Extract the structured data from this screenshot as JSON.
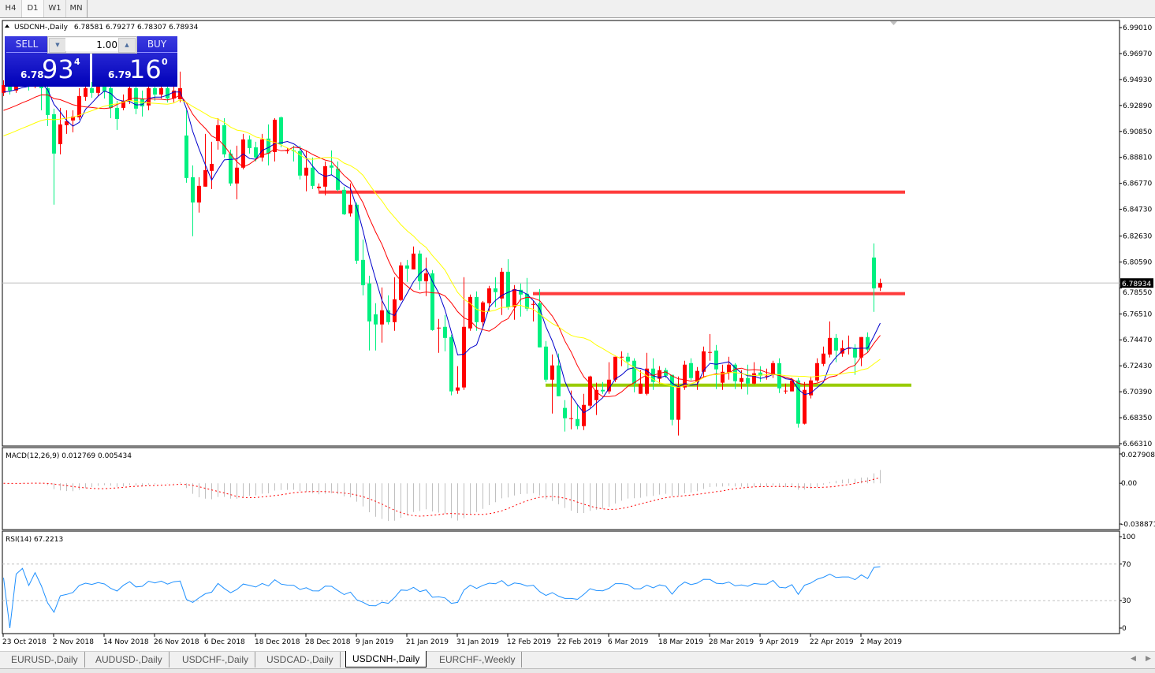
{
  "timeframes": [
    {
      "label": "H4",
      "selected": false
    },
    {
      "label": "D1",
      "selected": true
    },
    {
      "label": "W1",
      "selected": false
    },
    {
      "label": "MN",
      "selected": false
    }
  ],
  "chart": {
    "symbol_line": "USDCNH-,Daily",
    "ohlc_line": "6.78581 6.79277 6.78307 6.78934",
    "current_price": "6.78934",
    "price_ticks": [
      "6.99010",
      "6.96970",
      "6.94930",
      "6.92890",
      "6.90850",
      "6.88810",
      "6.86770",
      "6.84730",
      "6.82630",
      "6.80590",
      "6.78550",
      "6.76510",
      "6.74470",
      "6.72430",
      "6.70390",
      "6.68350",
      "6.66310"
    ],
    "price_range": [
      6.6631,
      6.9901
    ],
    "up_color": "#ff0000",
    "down_color": "#00f080",
    "ma_colors": [
      "#0000cc",
      "#ff0000",
      "#ffff00"
    ],
    "levels": [
      {
        "price": 6.8608,
        "from_bar": 50,
        "to_bar": 143,
        "color": "#ff3b3b"
      },
      {
        "price": 6.781,
        "from_bar": 84,
        "to_bar": 143,
        "color": "#ff3b3b"
      },
      {
        "price": 6.7091,
        "from_bar": 86,
        "to_bar": 144,
        "color": "#99cc00"
      }
    ],
    "date_labels": [
      {
        "bar": 0,
        "text": "23 Oct 2018"
      },
      {
        "bar": 8,
        "text": "2 Nov 2018"
      },
      {
        "bar": 16,
        "text": "14 Nov 2018"
      },
      {
        "bar": 24,
        "text": "26 Nov 2018"
      },
      {
        "bar": 32,
        "text": "6 Dec 2018"
      },
      {
        "bar": 40,
        "text": "18 Dec 2018"
      },
      {
        "bar": 48,
        "text": "28 Dec 2018"
      },
      {
        "bar": 56,
        "text": "9 Jan 2019"
      },
      {
        "bar": 64,
        "text": "21 Jan 2019"
      },
      {
        "bar": 72,
        "text": "31 Jan 2019"
      },
      {
        "bar": 80,
        "text": "12 Feb 2019"
      },
      {
        "bar": 88,
        "text": "22 Feb 2019"
      },
      {
        "bar": 96,
        "text": "6 Mar 2019"
      },
      {
        "bar": 104,
        "text": "18 Mar 2019"
      },
      {
        "bar": 112,
        "text": "28 Mar 2019"
      },
      {
        "bar": 120,
        "text": "9 Apr 2019"
      },
      {
        "bar": 128,
        "text": "22 Apr 2019"
      },
      {
        "bar": 136,
        "text": "2 May 2019"
      }
    ]
  },
  "chart_data": {
    "type": "candlestick",
    "ohlc_order": [
      "open",
      "high",
      "low",
      "close"
    ],
    "bars": [
      [
        6.9388,
        6.9487,
        6.9363,
        6.9449
      ],
      [
        6.9449,
        6.9499,
        6.9375,
        6.9406
      ],
      [
        6.9406,
        6.9511,
        6.9388,
        6.9468
      ],
      [
        6.9468,
        6.953,
        6.9437,
        6.9487
      ],
      [
        6.9487,
        6.9524,
        6.9406,
        6.9437
      ],
      [
        6.9437,
        6.9549,
        6.9425,
        6.9499
      ],
      [
        6.9499,
        6.953,
        6.9251,
        6.9425
      ],
      [
        6.9425,
        6.9468,
        6.9128,
        6.9214
      ],
      [
        6.922,
        6.9264,
        6.8509,
        6.8911
      ],
      [
        6.8985,
        6.927,
        6.8905,
        6.914
      ],
      [
        6.9134,
        6.9251,
        6.9066,
        6.9165
      ],
      [
        6.9171,
        6.9251,
        6.9078,
        6.9202
      ],
      [
        6.9196,
        6.9425,
        6.9177,
        6.9363
      ],
      [
        6.9357,
        6.9449,
        6.9326,
        6.9425
      ],
      [
        6.9425,
        6.9474,
        6.935,
        6.9388
      ],
      [
        6.9388,
        6.9499,
        6.9363,
        6.9437
      ],
      [
        6.9437,
        6.9487,
        6.9344,
        6.94
      ],
      [
        6.9425,
        6.9468,
        6.9189,
        6.927
      ],
      [
        6.927,
        6.9326,
        6.9097,
        6.9183
      ],
      [
        6.927,
        6.9375,
        6.9251,
        6.9326
      ],
      [
        6.9326,
        6.9468,
        6.9301,
        6.9425
      ],
      [
        6.9425,
        6.9468,
        6.922,
        6.9264
      ],
      [
        6.9344,
        6.9406,
        6.9202,
        6.9282
      ],
      [
        6.9289,
        6.9449,
        6.9251,
        6.9425
      ],
      [
        6.9425,
        6.9468,
        6.9326,
        6.9375
      ],
      [
        6.9375,
        6.9468,
        6.9344,
        6.9425
      ],
      [
        6.9425,
        6.9468,
        6.9313,
        6.9344
      ],
      [
        6.9344,
        6.9449,
        6.9313,
        6.9406
      ],
      [
        6.9338,
        6.9555,
        6.9313,
        6.9425
      ],
      [
        6.9053,
        6.9251,
        6.8682,
        6.8719
      ],
      [
        6.8725,
        6.8818,
        6.8261,
        6.8527
      ],
      [
        6.8527,
        6.8725,
        6.8447,
        6.8657
      ],
      [
        6.8651,
        6.9066,
        6.8651,
        6.8781
      ],
      [
        6.8775,
        6.9004,
        6.8632,
        6.883
      ],
      [
        6.901,
        6.9189,
        6.8942,
        6.9134
      ],
      [
        6.9134,
        6.9189,
        6.888,
        6.8905
      ],
      [
        6.8911,
        6.8942,
        6.8657,
        6.8676
      ],
      [
        6.8676,
        6.8973,
        6.8552,
        6.88
      ],
      [
        6.88,
        6.9066,
        6.8787,
        6.9022
      ],
      [
        6.9022,
        6.9053,
        6.8911,
        6.8954
      ],
      [
        6.896,
        6.9004,
        6.8849,
        6.888
      ],
      [
        6.888,
        6.9066,
        6.8849,
        6.9022
      ],
      [
        6.9029,
        6.914,
        6.8818,
        6.8911
      ],
      [
        6.8923,
        6.9189,
        6.8849,
        6.9177
      ],
      [
        6.9196,
        6.9202,
        6.896,
        6.8985
      ],
      [
        6.893,
        6.8954,
        6.8911,
        6.8936
      ],
      [
        6.8936,
        6.8973,
        6.8849,
        6.893
      ],
      [
        6.893,
        6.8973,
        6.8707,
        6.8738
      ],
      [
        6.8738,
        6.8936,
        6.8614,
        6.88
      ],
      [
        6.88,
        6.888,
        6.8632,
        6.8657
      ],
      [
        6.8639,
        6.8676,
        6.862,
        6.8651
      ],
      [
        6.8651,
        6.8849,
        6.8583,
        6.8812
      ],
      [
        6.8818,
        6.8936,
        6.8744,
        6.88
      ],
      [
        6.8793,
        6.8849,
        6.8614,
        6.8626
      ],
      [
        6.8626,
        6.8651,
        6.8428,
        6.8434
      ],
      [
        6.8441,
        6.8676,
        6.8416,
        6.8509
      ],
      [
        6.8509,
        6.8527,
        6.8044,
        6.8069
      ],
      [
        6.8075,
        6.8236,
        6.7797,
        6.7877
      ],
      [
        6.789,
        6.7951,
        6.7363,
        6.7592
      ],
      [
        6.7648,
        6.7735,
        6.7363,
        6.7568
      ],
      [
        6.7568,
        6.7859,
        6.7425,
        6.7679
      ],
      [
        6.7679,
        6.7797,
        6.7568,
        6.7586
      ],
      [
        6.7586,
        6.7939,
        6.7518,
        6.7766
      ],
      [
        6.776,
        6.8057,
        6.7753,
        6.8032
      ],
      [
        6.8032,
        6.8075,
        6.7902,
        6.8007
      ],
      [
        6.8001,
        6.8181,
        6.8001,
        6.8125
      ],
      [
        6.8125,
        6.815,
        6.784,
        6.7908
      ],
      [
        6.7908,
        6.8094,
        6.7791,
        6.797
      ],
      [
        6.797,
        6.7995,
        6.7518,
        6.7524
      ],
      [
        6.7543,
        6.7611,
        6.7345,
        6.7543
      ],
      [
        6.7549,
        6.7642,
        6.7357,
        6.7462
      ],
      [
        6.7469,
        6.7487,
        6.7011,
        6.7042
      ],
      [
        6.7048,
        6.724,
        6.7023,
        6.7073
      ],
      [
        6.7073,
        6.7939,
        6.7054,
        6.7549
      ],
      [
        6.7537,
        6.7803,
        6.7518,
        6.7784
      ],
      [
        6.7784,
        6.7828,
        6.7518,
        6.7586
      ],
      [
        6.7586,
        6.7753,
        6.7549,
        6.7741
      ],
      [
        6.7735,
        6.7871,
        6.7673,
        6.7852
      ],
      [
        6.7852,
        6.7939,
        6.7704,
        6.7822
      ],
      [
        6.7772,
        6.8013,
        6.7642,
        6.7982
      ],
      [
        6.7982,
        6.8081,
        6.7685,
        6.7704
      ],
      [
        6.7704,
        6.7877,
        6.7605,
        6.7846
      ],
      [
        6.784,
        6.789,
        6.763,
        6.7803
      ],
      [
        6.7809,
        6.7933,
        6.7673,
        6.7692
      ],
      [
        6.7722,
        6.7753,
        6.7592,
        6.7729
      ],
      [
        6.7735,
        6.7846,
        6.7388,
        6.7388
      ],
      [
        6.7394,
        6.7438,
        6.7116,
        6.7134
      ],
      [
        6.7134,
        6.7332,
        6.6868,
        6.7246
      ],
      [
        6.7246,
        6.7339,
        6.7004,
        6.7004
      ],
      [
        6.6912,
        6.6973,
        6.6726,
        6.6831
      ],
      [
        6.6831,
        6.7048,
        6.6744,
        6.6831
      ],
      [
        6.6825,
        6.6936,
        6.6744,
        6.6769
      ],
      [
        6.6769,
        6.7023,
        6.6738,
        6.6936
      ],
      [
        6.693,
        6.7165,
        6.6912,
        6.7159
      ],
      [
        6.6973,
        6.711,
        6.6856,
        6.7054
      ],
      [
        6.7054,
        6.7116,
        6.7023,
        6.7042
      ],
      [
        6.7042,
        6.7271,
        6.7023,
        6.7134
      ],
      [
        6.7134,
        6.7314,
        6.7116,
        6.7314
      ],
      [
        6.7314,
        6.7357,
        6.724,
        6.7314
      ],
      [
        6.7314,
        6.7345,
        6.7209,
        6.7277
      ],
      [
        6.7283,
        6.7302,
        6.7035,
        6.7103
      ],
      [
        6.7023,
        6.7209,
        6.7023,
        6.7103
      ],
      [
        6.7023,
        6.7345,
        6.7011,
        6.7221
      ],
      [
        6.7221,
        6.7302,
        6.7054,
        6.7116
      ],
      [
        6.7141,
        6.724,
        6.7103,
        6.7209
      ],
      [
        6.7209,
        6.7227,
        6.7147,
        6.7165
      ],
      [
        6.7172,
        6.7172,
        6.6775,
        6.6819
      ],
      [
        6.6819,
        6.7159,
        6.6695,
        6.7073
      ],
      [
        6.7073,
        6.7283,
        6.7054,
        6.7252
      ],
      [
        6.7264,
        6.7302,
        6.7128,
        6.7147
      ],
      [
        6.7116,
        6.7233,
        6.7054,
        6.7203
      ],
      [
        6.7196,
        6.7394,
        6.7147,
        6.7357
      ],
      [
        6.7351,
        6.7493,
        6.7283,
        6.7351
      ],
      [
        6.7363,
        6.7407,
        6.706,
        6.7215
      ],
      [
        6.711,
        6.7252,
        6.7054,
        6.7196
      ],
      [
        6.719,
        6.7314,
        6.7134,
        6.7252
      ],
      [
        6.7252,
        6.7264,
        6.706,
        6.7122
      ],
      [
        6.7116,
        6.7209,
        6.706,
        6.7147
      ],
      [
        6.7147,
        6.7252,
        6.7017,
        6.7103
      ],
      [
        6.7103,
        6.7271,
        6.7097,
        6.7184
      ],
      [
        6.719,
        6.724,
        6.7116,
        6.7165
      ],
      [
        6.7165,
        6.7221,
        6.7134,
        6.7165
      ],
      [
        6.7178,
        6.7283,
        6.7147,
        6.7264
      ],
      [
        6.7264,
        6.7302,
        6.7029,
        6.7066
      ],
      [
        6.7048,
        6.7103,
        6.7023,
        6.7048
      ],
      [
        6.7042,
        6.7147,
        6.7042,
        6.7128
      ],
      [
        6.7128,
        6.7147,
        6.6757,
        6.6788
      ],
      [
        6.6788,
        6.7116,
        6.6782,
        6.7054
      ],
      [
        6.7011,
        6.7159,
        6.6986,
        6.7128
      ],
      [
        6.7128,
        6.7302,
        6.7116,
        6.7264
      ],
      [
        6.7258,
        6.7394,
        6.724,
        6.7339
      ],
      [
        6.7332,
        6.7592,
        6.7308,
        6.7462
      ],
      [
        6.7462,
        6.7493,
        6.7271,
        6.7363
      ],
      [
        6.7339,
        6.7444,
        6.7314,
        6.7382
      ],
      [
        6.7382,
        6.7481,
        6.7332,
        6.7382
      ],
      [
        6.7382,
        6.7413,
        6.7172,
        6.7308
      ],
      [
        6.7308,
        6.7469,
        6.724,
        6.7469
      ],
      [
        6.7469,
        6.7506,
        6.7345,
        6.737
      ],
      [
        6.8094,
        6.8205,
        6.7667,
        6.7852
      ],
      [
        6.78581,
        6.79277,
        6.78307,
        6.78934
      ]
    ]
  },
  "macd": {
    "label": "MACD(12,26,9) 0.012769 0.005434",
    "ticks": [
      "0.027908",
      "0.00",
      "-0.038871"
    ],
    "range": [
      -0.038871,
      0.027908
    ],
    "histogram_color": "#c0c0c0",
    "signal_color": "#ff0000"
  },
  "rsi": {
    "label": "RSI(14) 67.2213",
    "ticks": [
      "100",
      "70",
      "30",
      "0"
    ],
    "levels": [
      70,
      30
    ],
    "line_color": "#1e90ff"
  },
  "trade_panel": {
    "sell_label": "SELL",
    "buy_label": "BUY",
    "quantity": "1.00",
    "sell_price_prefix": "6.78",
    "sell_price_big": "93",
    "sell_price_sup": "4",
    "buy_price_prefix": "6.79",
    "buy_price_big": "16",
    "buy_price_sup": "0"
  },
  "tabs": [
    {
      "label": "EURUSD-,Daily",
      "active": false
    },
    {
      "label": "AUDUSD-,Daily",
      "active": false
    },
    {
      "label": "USDCHF-,Daily",
      "active": false
    },
    {
      "label": "USDCAD-,Daily",
      "active": false
    },
    {
      "label": "USDCNH-,Daily",
      "active": true
    },
    {
      "label": "EURCHF-,Weekly",
      "active": false
    }
  ]
}
